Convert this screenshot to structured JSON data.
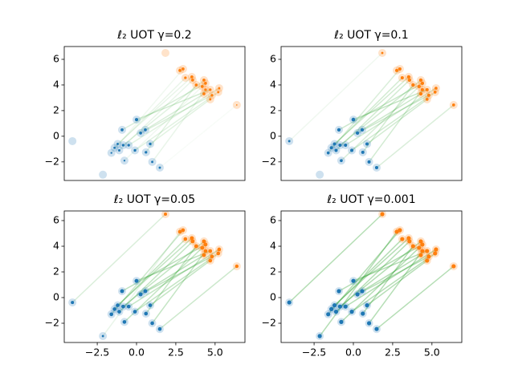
{
  "chart_data": [
    {
      "type": "scatter",
      "title": "ℓ₂ UOT γ=0.2",
      "xlim": [
        -4.6,
        6.9
      ],
      "ylim": [
        -3.45,
        7.0
      ],
      "yticks": [
        {
          "value": -2,
          "label": "−2"
        },
        0,
        2,
        4,
        6
      ],
      "source": {
        "color": "#1f77b4",
        "x": [
          -4.08,
          -2.14,
          -1.6,
          -1.4,
          -1.2,
          -1.1,
          -0.85,
          -0.92,
          -0.77,
          -0.5,
          -0.1,
          0.0,
          0.26,
          0.56,
          0.87,
          1.0,
          1.48,
          0.6
        ],
        "values": [
          -0.38,
          -3.0,
          -1.3,
          -0.9,
          -0.6,
          -1.1,
          -0.7,
          0.5,
          -1.9,
          -0.7,
          -1.1,
          1.3,
          0.25,
          0.5,
          -0.6,
          -2.0,
          -2.45,
          -1.25
        ],
        "mass": [
          0,
          0,
          0.2,
          0.3,
          0.3,
          0.3,
          0.4,
          0.5,
          0.2,
          0.4,
          0.4,
          0.6,
          0.5,
          0.5,
          0.4,
          0.3,
          0.3,
          0.4
        ]
      },
      "target": {
        "color": "#ff7f0e",
        "x": [
          1.84,
          2.76,
          2.96,
          3.11,
          3.52,
          3.57,
          4.29,
          4.39,
          4.18,
          5.26,
          5.2,
          4.69,
          4.8,
          4.29,
          4.69,
          4.39,
          6.38,
          3.8
        ],
        "values": [
          6.5,
          5.13,
          5.25,
          4.56,
          4.63,
          4.38,
          4.38,
          4.13,
          3.88,
          3.75,
          3.44,
          3.63,
          3.2,
          3.31,
          2.88,
          3.63,
          2.44,
          4.0
        ],
        "mass": [
          0,
          0.5,
          0.5,
          0.4,
          0.5,
          0.5,
          0.5,
          0.5,
          0.5,
          0.3,
          0.3,
          0.4,
          0.4,
          0.5,
          0.3,
          0.4,
          0.1,
          0.5
        ]
      },
      "links": {
        "color": "#2ca02c",
        "weights": [
          0,
          0,
          0.2,
          0.3,
          0.3,
          0.3,
          0.4,
          0.5,
          0.2,
          0.4,
          0.4,
          0.6,
          0.5,
          0.5,
          0.4,
          0.3,
          0.1,
          0.4
        ]
      }
    },
    {
      "type": "scatter",
      "title": "ℓ₂ UOT γ=0.1",
      "xlim": [
        -4.6,
        6.9
      ],
      "ylim": [
        -3.45,
        7.0
      ],
      "yticks": [
        {
          "value": -2,
          "label": "−2"
        },
        0,
        2,
        4,
        6
      ],
      "source": {
        "color": "#1f77b4",
        "x": [
          -4.08,
          -2.14,
          -1.6,
          -1.4,
          -1.2,
          -1.1,
          -0.85,
          -0.92,
          -0.77,
          -0.5,
          -0.1,
          0.0,
          0.26,
          0.56,
          0.87,
          1.0,
          1.48,
          0.6
        ],
        "values": [
          -0.38,
          -3.0,
          -1.3,
          -0.9,
          -0.6,
          -1.1,
          -0.7,
          0.5,
          -1.9,
          -0.7,
          -1.1,
          1.3,
          0.25,
          0.5,
          -0.6,
          -2.0,
          -2.45,
          -1.25
        ],
        "mass": [
          0.3,
          0,
          0.5,
          0.6,
          0.6,
          0.6,
          0.6,
          0.7,
          0.5,
          0.6,
          0.6,
          0.8,
          0.7,
          0.7,
          0.6,
          0.6,
          0.6,
          0.6
        ]
      },
      "target": {
        "color": "#ff7f0e",
        "x": [
          1.84,
          2.76,
          2.96,
          3.11,
          3.52,
          3.57,
          4.29,
          4.39,
          4.18,
          5.26,
          5.2,
          4.69,
          4.8,
          4.29,
          4.69,
          4.39,
          6.38,
          3.8
        ],
        "values": [
          6.5,
          5.13,
          5.25,
          4.56,
          4.63,
          4.38,
          4.38,
          4.13,
          3.88,
          3.75,
          3.44,
          3.63,
          3.2,
          3.31,
          2.88,
          3.63,
          2.44,
          4.0
        ],
        "mass": [
          0.3,
          0.6,
          0.6,
          0.6,
          0.7,
          0.7,
          0.7,
          0.7,
          0.7,
          0.5,
          0.5,
          0.6,
          0.6,
          0.7,
          0.5,
          0.6,
          0.5,
          0.7
        ]
      },
      "links": {
        "color": "#2ca02c",
        "weights": [
          0.2,
          0,
          0.5,
          0.6,
          0.6,
          0.6,
          0.6,
          0.7,
          0.5,
          0.6,
          0.6,
          0.8,
          0.7,
          0.7,
          0.6,
          0.6,
          0.5,
          0.6
        ]
      }
    },
    {
      "type": "scatter",
      "title": "ℓ₂ UOT γ=0.05",
      "xlim": [
        -4.6,
        6.9
      ],
      "ylim": [
        -3.5,
        6.75
      ],
      "xticks": [
        {
          "value": -2.5,
          "label": "−2.5"
        },
        {
          "value": 0,
          "label": "0.0"
        },
        {
          "value": 2.5,
          "label": "2.5"
        },
        {
          "value": 5,
          "label": "5.0"
        }
      ],
      "yticks": [
        {
          "value": -2,
          "label": "−2"
        },
        0,
        2,
        4,
        6
      ],
      "source": {
        "color": "#1f77b4",
        "x": [
          -4.08,
          -2.14,
          -1.6,
          -1.4,
          -1.2,
          -1.1,
          -0.85,
          -0.92,
          -0.77,
          -0.5,
          -0.1,
          0.0,
          0.26,
          0.56,
          0.87,
          1.0,
          1.48,
          0.6
        ],
        "values": [
          -0.38,
          -3.0,
          -1.3,
          -0.9,
          -0.6,
          -1.1,
          -0.7,
          0.5,
          -1.9,
          -0.7,
          -1.1,
          1.3,
          0.25,
          0.5,
          -0.6,
          -2.0,
          -2.45,
          -1.25
        ],
        "mass": [
          0.6,
          0.3,
          0.8,
          0.8,
          0.8,
          0.8,
          0.8,
          0.9,
          0.8,
          0.8,
          0.8,
          0.9,
          0.9,
          0.9,
          0.8,
          0.8,
          0.8,
          0.8
        ]
      },
      "target": {
        "color": "#ff7f0e",
        "x": [
          1.84,
          2.76,
          2.96,
          3.11,
          3.52,
          3.57,
          4.29,
          4.39,
          4.18,
          5.26,
          5.2,
          4.69,
          4.8,
          4.29,
          4.69,
          4.39,
          6.38,
          3.8
        ],
        "values": [
          6.5,
          5.13,
          5.25,
          4.56,
          4.63,
          4.38,
          4.38,
          4.13,
          3.88,
          3.75,
          3.44,
          3.63,
          3.2,
          3.31,
          2.88,
          3.63,
          2.44,
          4.0
        ],
        "mass": [
          0.6,
          0.8,
          0.8,
          0.8,
          0.9,
          0.9,
          0.9,
          0.9,
          0.9,
          0.8,
          0.8,
          0.8,
          0.8,
          0.9,
          0.8,
          0.8,
          0.7,
          0.9
        ]
      },
      "links": {
        "color": "#2ca02c",
        "weights": [
          0.5,
          0.3,
          0.7,
          0.8,
          0.8,
          0.8,
          0.8,
          0.9,
          0.8,
          0.8,
          0.8,
          0.9,
          0.9,
          0.9,
          0.8,
          0.8,
          0.7,
          0.8
        ]
      }
    },
    {
      "type": "scatter",
      "title": "ℓ₂ UOT γ=0.001",
      "xlim": [
        -4.6,
        6.9
      ],
      "ylim": [
        -3.5,
        6.75
      ],
      "xticks": [
        {
          "value": -2.5,
          "label": "−2.5"
        },
        {
          "value": 0,
          "label": "0.0"
        },
        {
          "value": 2.5,
          "label": "2.5"
        },
        {
          "value": 5,
          "label": "5.0"
        }
      ],
      "yticks": [
        {
          "value": -2,
          "label": "−2"
        },
        0,
        2,
        4,
        6
      ],
      "source": {
        "color": "#1f77b4",
        "x": [
          -4.08,
          -2.14,
          -1.6,
          -1.4,
          -1.2,
          -1.1,
          -0.85,
          -0.92,
          -0.77,
          -0.5,
          -0.1,
          0.0,
          0.26,
          0.56,
          0.87,
          1.0,
          1.48,
          0.6
        ],
        "values": [
          -0.38,
          -3.0,
          -1.3,
          -0.9,
          -0.6,
          -1.1,
          -0.7,
          0.5,
          -1.9,
          -0.7,
          -1.1,
          1.3,
          0.25,
          0.5,
          -0.6,
          -2.0,
          -2.45,
          -1.25
        ],
        "mass": [
          1,
          1,
          1,
          1,
          1,
          1,
          1,
          1,
          1,
          1,
          1,
          1,
          1,
          1,
          1,
          1,
          1,
          1
        ]
      },
      "target": {
        "color": "#ff7f0e",
        "x": [
          1.84,
          2.76,
          2.96,
          3.11,
          3.52,
          3.57,
          4.29,
          4.39,
          4.18,
          5.26,
          5.2,
          4.69,
          4.8,
          4.29,
          4.69,
          4.39,
          6.38,
          3.8
        ],
        "values": [
          6.5,
          5.13,
          5.25,
          4.56,
          4.63,
          4.38,
          4.38,
          4.13,
          3.88,
          3.75,
          3.44,
          3.63,
          3.2,
          3.31,
          2.88,
          3.63,
          2.44,
          4.0
        ],
        "mass": [
          1,
          1,
          1,
          1,
          1,
          1,
          1,
          1,
          1,
          1,
          1,
          1,
          1,
          1,
          1,
          1,
          1,
          1
        ]
      },
      "links": {
        "color": "#2ca02c",
        "weights": [
          1,
          1,
          1,
          1,
          1,
          1,
          1,
          1,
          1,
          1,
          1,
          1,
          1,
          1,
          1,
          1,
          1,
          1
        ]
      }
    }
  ]
}
